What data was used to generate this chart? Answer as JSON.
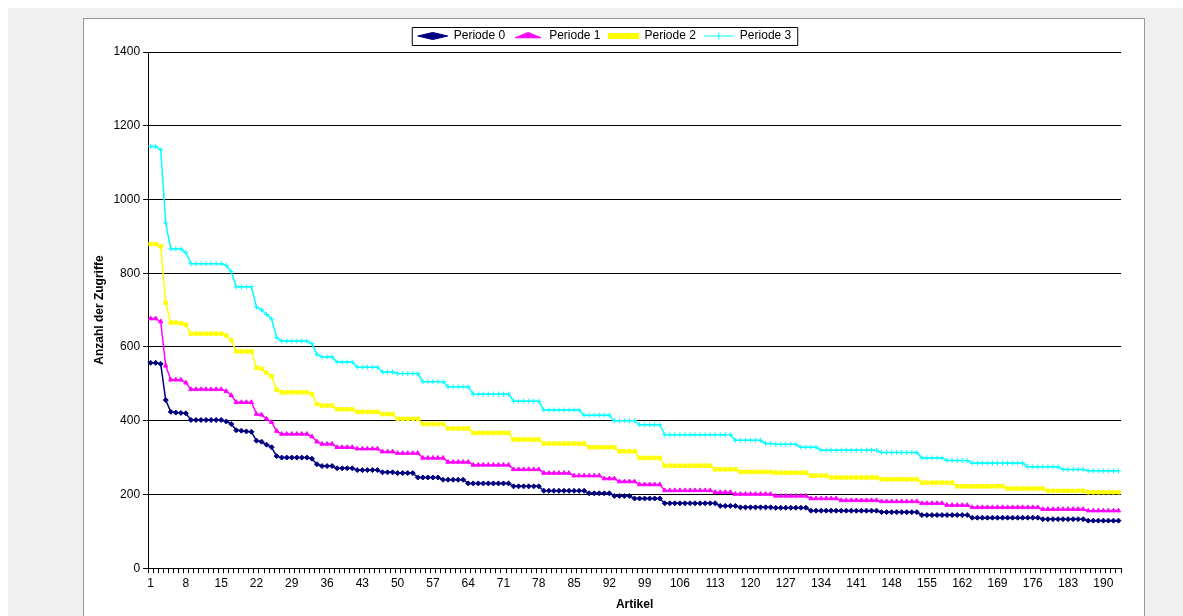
{
  "chart_data": {
    "type": "line",
    "xlabel": "Artikel",
    "ylabel": "Anzahl der Zugriffe",
    "legend": "top",
    "grid": "y",
    "ylim": [
      0,
      1400
    ],
    "yticks": [
      0,
      200,
      400,
      600,
      800,
      1000,
      1200,
      1400
    ],
    "categories": [
      "1",
      null,
      null,
      null,
      null,
      null,
      null,
      "8",
      null,
      null,
      null,
      null,
      null,
      null,
      "15",
      null,
      null,
      null,
      null,
      null,
      null,
      "22",
      null,
      null,
      null,
      null,
      null,
      null,
      "29",
      null,
      null,
      null,
      null,
      null,
      null,
      "36",
      null,
      null,
      null,
      null,
      null,
      null,
      "43",
      null,
      null,
      null,
      null,
      null,
      null,
      "50",
      null,
      null,
      null,
      null,
      null,
      null,
      "57",
      null,
      null,
      null,
      null,
      null,
      null,
      "64",
      null,
      null,
      null,
      null,
      null,
      null,
      "71",
      null,
      null,
      null,
      null,
      null,
      null,
      "78",
      null,
      null,
      null,
      null,
      null,
      null,
      "85",
      null,
      null,
      null,
      null,
      null,
      null,
      "92",
      null,
      null,
      null,
      null,
      null,
      null,
      "99",
      null,
      null,
      null,
      null,
      null,
      null,
      "106",
      null,
      null,
      null,
      null,
      null,
      null,
      "113",
      null,
      null,
      null,
      null,
      null,
      null,
      "120",
      null,
      null,
      null,
      null,
      null,
      null,
      "127",
      null,
      null,
      null,
      null,
      null,
      null,
      "134",
      null,
      null,
      null,
      null,
      null,
      null,
      "141",
      null,
      null,
      null,
      null,
      null,
      null,
      "148",
      null,
      null,
      null,
      null,
      null,
      null,
      "155",
      null,
      null,
      null,
      null,
      null,
      null,
      "162",
      null,
      null,
      null,
      null,
      null,
      null,
      "169",
      null,
      null,
      null,
      null,
      null,
      null,
      "176",
      null,
      null,
      null,
      null,
      null,
      null,
      "183",
      null,
      null,
      null,
      null,
      null,
      null,
      "190",
      null,
      null,
      null
    ],
    "series": [
      {
        "name": "Periode 0",
        "color": "#000080",
        "marker": "diamond",
        "values": [
          557,
          557,
          554,
          456,
          424,
          422,
          421,
          420,
          402,
          402,
          402,
          402,
          402,
          402,
          402,
          398,
          391,
          374,
          373,
          371,
          370,
          346,
          343,
          335,
          328,
          304,
          300,
          300,
          300,
          300,
          300,
          300,
          297,
          282,
          277,
          277,
          277,
          271,
          271,
          271,
          271,
          266,
          266,
          266,
          266,
          266,
          260,
          260,
          260,
          258,
          258,
          258,
          258,
          246,
          246,
          246,
          246,
          246,
          240,
          240,
          240,
          240,
          240,
          230,
          230,
          230,
          230,
          230,
          230,
          230,
          230,
          230,
          222,
          222,
          222,
          222,
          222,
          222,
          210,
          210,
          210,
          210,
          210,
          210,
          210,
          210,
          210,
          203,
          203,
          203,
          203,
          203,
          196,
          196,
          196,
          196,
          189,
          189,
          189,
          189,
          189,
          189,
          176,
          176,
          176,
          176,
          176,
          176,
          176,
          176,
          176,
          176,
          176,
          169,
          169,
          169,
          169,
          165,
          165,
          165,
          165,
          165,
          165,
          165,
          164,
          164,
          164,
          164,
          164,
          164,
          164,
          156,
          156,
          156,
          156,
          156,
          156,
          156,
          156,
          156,
          156,
          156,
          156,
          156,
          156,
          152,
          152,
          152,
          152,
          152,
          152,
          152,
          152,
          144,
          144,
          144,
          144,
          144,
          144,
          144,
          144,
          144,
          144,
          137,
          137,
          137,
          137,
          137,
          137,
          137,
          137,
          137,
          137,
          137,
          137,
          137,
          137,
          133,
          133,
          133,
          133,
          133,
          133,
          133,
          133,
          133,
          129,
          129,
          129,
          129,
          129,
          129,
          129
        ]
      },
      {
        "name": "Periode 1",
        "color": "#ff00ff",
        "marker": "triangle",
        "values": [
          677,
          677,
          669,
          549,
          511,
          511,
          511,
          503,
          485,
          485,
          485,
          485,
          485,
          485,
          485,
          480,
          469,
          450,
          450,
          450,
          450,
          418,
          416,
          405,
          396,
          372,
          364,
          364,
          364,
          364,
          364,
          364,
          357,
          343,
          337,
          337,
          337,
          328,
          328,
          328,
          328,
          324,
          324,
          324,
          324,
          324,
          316,
          316,
          316,
          312,
          312,
          312,
          312,
          312,
          299,
          299,
          299,
          299,
          299,
          288,
          288,
          288,
          288,
          288,
          280,
          280,
          280,
          280,
          280,
          280,
          280,
          280,
          268,
          268,
          268,
          268,
          268,
          268,
          258,
          258,
          258,
          258,
          258,
          258,
          251,
          251,
          251,
          251,
          251,
          251,
          243,
          243,
          243,
          235,
          235,
          235,
          235,
          227,
          227,
          227,
          227,
          227,
          211,
          211,
          211,
          211,
          211,
          211,
          211,
          211,
          211,
          211,
          206,
          206,
          206,
          206,
          201,
          201,
          201,
          201,
          201,
          201,
          201,
          201,
          196,
          196,
          196,
          196,
          196,
          196,
          196,
          189,
          189,
          189,
          189,
          189,
          189,
          184,
          184,
          184,
          184,
          184,
          184,
          184,
          184,
          181,
          181,
          181,
          181,
          181,
          181,
          181,
          181,
          176,
          176,
          176,
          176,
          176,
          171,
          171,
          171,
          171,
          171,
          165,
          165,
          165,
          165,
          165,
          165,
          165,
          165,
          165,
          165,
          165,
          165,
          165,
          165,
          160,
          160,
          160,
          160,
          160,
          160,
          160,
          160,
          160,
          156,
          156,
          156,
          156,
          156,
          156,
          156
        ]
      },
      {
        "name": "Periode 2",
        "color": "#ffff00",
        "marker": "square",
        "values": [
          879,
          879,
          873,
          720,
          666,
          666,
          664,
          660,
          636,
          636,
          636,
          636,
          636,
          636,
          636,
          631,
          618,
          588,
          588,
          588,
          588,
          544,
          541,
          530,
          520,
          484,
          477,
          477,
          477,
          477,
          477,
          477,
          472,
          445,
          441,
          441,
          441,
          431,
          431,
          431,
          431,
          424,
          424,
          424,
          424,
          424,
          418,
          418,
          418,
          405,
          405,
          405,
          405,
          405,
          391,
          391,
          391,
          391,
          391,
          379,
          379,
          379,
          379,
          379,
          367,
          367,
          367,
          367,
          367,
          367,
          367,
          367,
          349,
          349,
          349,
          349,
          349,
          349,
          338,
          338,
          338,
          338,
          338,
          338,
          338,
          338,
          338,
          328,
          328,
          328,
          328,
          328,
          328,
          317,
          317,
          317,
          317,
          299,
          299,
          299,
          299,
          299,
          278,
          278,
          278,
          278,
          278,
          278,
          278,
          278,
          278,
          278,
          268,
          268,
          268,
          268,
          268,
          261,
          261,
          261,
          261,
          261,
          261,
          261,
          259,
          259,
          259,
          259,
          259,
          259,
          259,
          251,
          251,
          251,
          251,
          246,
          246,
          246,
          246,
          246,
          246,
          246,
          246,
          246,
          246,
          241,
          241,
          241,
          241,
          241,
          241,
          241,
          241,
          232,
          232,
          232,
          232,
          232,
          232,
          232,
          222,
          222,
          222,
          222,
          222,
          222,
          222,
          222,
          222,
          222,
          216,
          216,
          216,
          216,
          216,
          216,
          216,
          216,
          210,
          210,
          210,
          210,
          210,
          210,
          210,
          210,
          206,
          206,
          206,
          206,
          206,
          206,
          206
        ]
      },
      {
        "name": "Periode 3",
        "color": "#00ffff",
        "marker": "cross",
        "values": [
          1144,
          1144,
          1135,
          936,
          866,
          866,
          866,
          856,
          826,
          826,
          826,
          826,
          826,
          826,
          826,
          821,
          804,
          763,
          763,
          763,
          763,
          708,
          701,
          688,
          676,
          626,
          616,
          616,
          616,
          616,
          616,
          616,
          609,
          580,
          573,
          573,
          573,
          559,
          559,
          559,
          559,
          545,
          545,
          545,
          545,
          545,
          532,
          532,
          532,
          528,
          528,
          528,
          528,
          528,
          506,
          506,
          506,
          506,
          506,
          492,
          492,
          492,
          492,
          492,
          472,
          472,
          472,
          472,
          472,
          472,
          472,
          472,
          453,
          453,
          453,
          453,
          453,
          453,
          429,
          429,
          429,
          429,
          429,
          429,
          429,
          429,
          415,
          415,
          415,
          415,
          415,
          415,
          400,
          400,
          400,
          400,
          400,
          389,
          389,
          389,
          389,
          389,
          362,
          362,
          362,
          362,
          362,
          362,
          362,
          362,
          362,
          362,
          362,
          362,
          362,
          362,
          347,
          347,
          347,
          347,
          347,
          347,
          338,
          338,
          336,
          336,
          336,
          336,
          336,
          328,
          328,
          328,
          328,
          320,
          320,
          320,
          320,
          320,
          320,
          320,
          320,
          320,
          320,
          320,
          320,
          314,
          314,
          314,
          314,
          314,
          314,
          314,
          314,
          299,
          299,
          299,
          299,
          299,
          292,
          292,
          292,
          292,
          292,
          285,
          285,
          285,
          285,
          285,
          285,
          285,
          285,
          285,
          285,
          285,
          275,
          275,
          275,
          275,
          275,
          275,
          275,
          268,
          268,
          268,
          268,
          268,
          264,
          264,
          264,
          264,
          264,
          264,
          264
        ]
      }
    ]
  }
}
